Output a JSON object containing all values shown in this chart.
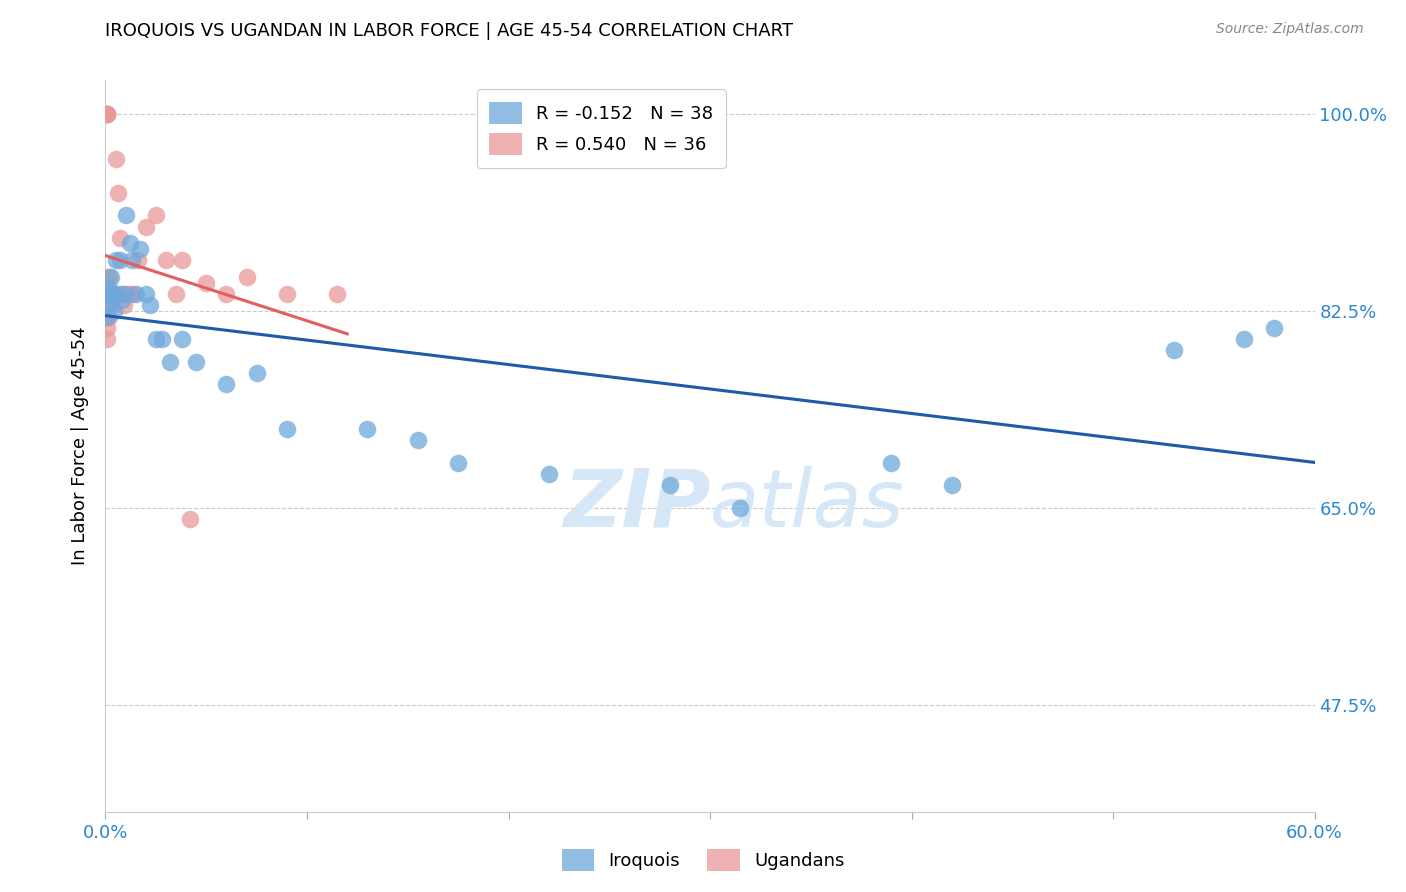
{
  "title": "IROQUOIS VS UGANDAN IN LABOR FORCE | AGE 45-54 CORRELATION CHART",
  "source_text": "Source: ZipAtlas.com",
  "ylabel": "In Labor Force | Age 45-54",
  "xlim": [
    0.0,
    0.6
  ],
  "ylim": [
    0.38,
    1.03
  ],
  "ytick_values": [
    1.0,
    0.825,
    0.65,
    0.475
  ],
  "ytick_labels": [
    "100.0%",
    "82.5%",
    "65.0%",
    "47.5%"
  ],
  "legend_r_blue": "R = -0.152",
  "legend_n_blue": "N = 38",
  "legend_r_pink": "R = 0.540",
  "legend_n_pink": "N = 36",
  "legend_label_blue": "Iroquois",
  "legend_label_pink": "Ugandans",
  "blue_color": "#6fa8dc",
  "pink_color": "#ea9999",
  "blue_line_color": "#1f5aab",
  "pink_line_color": "#e06060",
  "watermark_color": "#d6e8f7",
  "iroquois_x": [
    0.001,
    0.001,
    0.002,
    0.002,
    0.003,
    0.004,
    0.004,
    0.005,
    0.006,
    0.007,
    0.008,
    0.009,
    0.01,
    0.012,
    0.013,
    0.015,
    0.017,
    0.02,
    0.022,
    0.025,
    0.028,
    0.032,
    0.038,
    0.045,
    0.06,
    0.075,
    0.09,
    0.13,
    0.155,
    0.175,
    0.22,
    0.28,
    0.315,
    0.39,
    0.42,
    0.53,
    0.565,
    0.58
  ],
  "iroquois_y": [
    0.84,
    0.82,
    0.845,
    0.83,
    0.855,
    0.84,
    0.825,
    0.87,
    0.84,
    0.87,
    0.835,
    0.84,
    0.91,
    0.885,
    0.87,
    0.84,
    0.88,
    0.84,
    0.83,
    0.8,
    0.8,
    0.78,
    0.8,
    0.78,
    0.76,
    0.77,
    0.72,
    0.72,
    0.71,
    0.69,
    0.68,
    0.67,
    0.65,
    0.69,
    0.67,
    0.79,
    0.8,
    0.81
  ],
  "ugandan_x": [
    0.001,
    0.001,
    0.001,
    0.001,
    0.001,
    0.001,
    0.001,
    0.001,
    0.001,
    0.001,
    0.002,
    0.002,
    0.002,
    0.003,
    0.003,
    0.004,
    0.005,
    0.006,
    0.007,
    0.008,
    0.009,
    0.01,
    0.012,
    0.013,
    0.016,
    0.02,
    0.025,
    0.03,
    0.035,
    0.038,
    0.042,
    0.05,
    0.06,
    0.07,
    0.09,
    0.115
  ],
  "ugandan_y": [
    1.0,
    1.0,
    1.0,
    1.0,
    0.855,
    0.84,
    0.83,
    0.82,
    0.81,
    0.8,
    0.855,
    0.84,
    0.82,
    0.84,
    0.83,
    0.84,
    0.96,
    0.93,
    0.89,
    0.84,
    0.83,
    0.84,
    0.84,
    0.84,
    0.87,
    0.9,
    0.91,
    0.87,
    0.84,
    0.87,
    0.64,
    0.85,
    0.84,
    0.855,
    0.84,
    0.84
  ]
}
